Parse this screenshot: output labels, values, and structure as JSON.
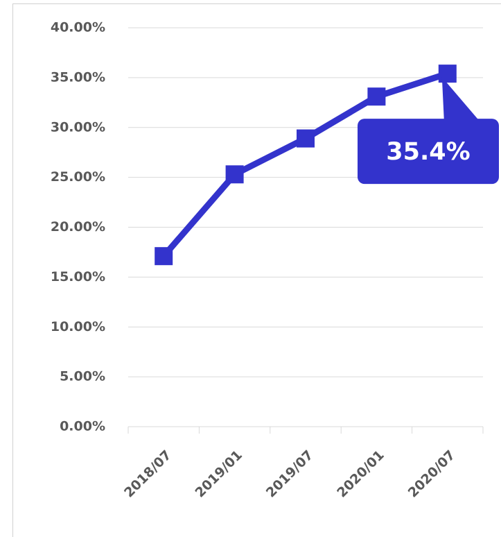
{
  "chart_data": {
    "type": "line",
    "categories": [
      "2018/07",
      "2019/01",
      "2019/07",
      "2020/01",
      "2020/07"
    ],
    "values": [
      17.1,
      25.3,
      28.9,
      33.1,
      35.4
    ],
    "value_labels": [
      null,
      null,
      null,
      null,
      "35.4%"
    ],
    "color": "#3333cc",
    "ylim": [
      0,
      40
    ],
    "yticks": [
      {
        "value": 0,
        "label": "0.00%"
      },
      {
        "value": 5,
        "label": "5.00%"
      },
      {
        "value": 10,
        "label": "10.00%"
      },
      {
        "value": 15,
        "label": "15.00%"
      },
      {
        "value": 20,
        "label": "20.00%"
      },
      {
        "value": 25,
        "label": "25.00%"
      },
      {
        "value": 30,
        "label": "30.00%"
      },
      {
        "value": 35,
        "label": "35.00%"
      },
      {
        "value": 40,
        "label": "40.00%"
      }
    ],
    "grid": true
  }
}
